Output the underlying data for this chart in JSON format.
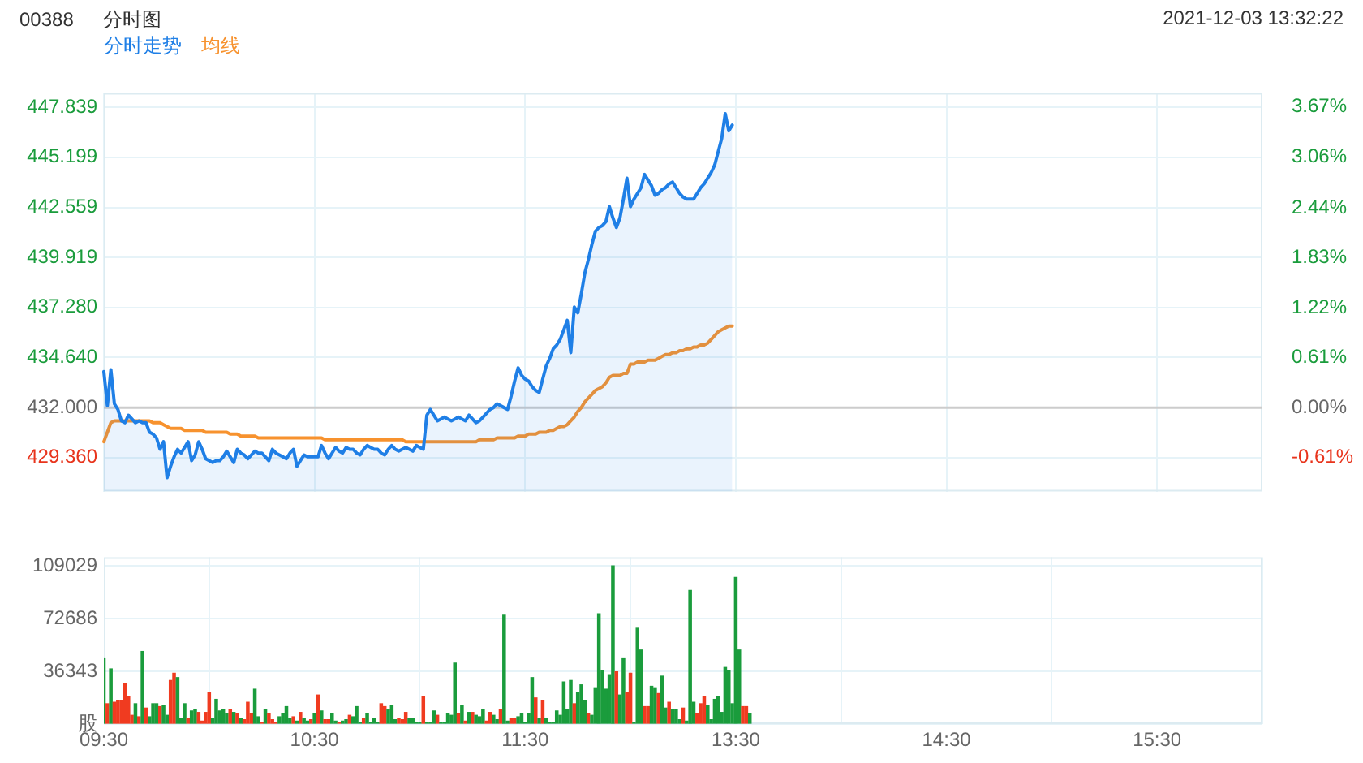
{
  "chart_data": [
    {
      "type": "line",
      "title": "00388",
      "subtitle": "分时图",
      "annotations": [
        "2021-12-03 13:32:22"
      ],
      "legend": "top left",
      "marker": "none",
      "grid": true,
      "tick_labels": "y",
      "categories": [
        null,
        null,
        null,
        null,
        null,
        null,
        null,
        null,
        null,
        null,
        null,
        null,
        null,
        null,
        null,
        null,
        null,
        null,
        null,
        null,
        null,
        null,
        null,
        null,
        null,
        null,
        null,
        null,
        null,
        null,
        null,
        null,
        null,
        null,
        null,
        null,
        null,
        null,
        null,
        null,
        null,
        null,
        null,
        null,
        null,
        null,
        null,
        null,
        null,
        null,
        null,
        null,
        null,
        null,
        null,
        null,
        null,
        null,
        null,
        null,
        null,
        null,
        null,
        null,
        null,
        null,
        null,
        null,
        null,
        null,
        null,
        null,
        null,
        null,
        null,
        null,
        null,
        null,
        null,
        null,
        null,
        null,
        null,
        null,
        null,
        null,
        null,
        null,
        null,
        null,
        null,
        null,
        null,
        null,
        null,
        null,
        null,
        null,
        null,
        null,
        null,
        null,
        null,
        null,
        null,
        null,
        null,
        null,
        null,
        null,
        null,
        null,
        null,
        null,
        null,
        null,
        null,
        null,
        null,
        null,
        null,
        null,
        null,
        null,
        null,
        null,
        null,
        null,
        null,
        null,
        null,
        null,
        null,
        null,
        null,
        null,
        null,
        null,
        null,
        null,
        null,
        null,
        null,
        null,
        null,
        null,
        null,
        null,
        null,
        null,
        null,
        null,
        null,
        null,
        null,
        null,
        null,
        null,
        null,
        null,
        null,
        null,
        null,
        null,
        null,
        null,
        null,
        null,
        null,
        null,
        null,
        null,
        null,
        null,
        null,
        null,
        null,
        null,
        null,
        null,
        null,
        null,
        null,
        null,
        null,
        null,
        null,
        null,
        null,
        null,
        null,
        null,
        null,
        null,
        null,
        null,
        null,
        null,
        null,
        null,
        null,
        null,
        null,
        null,
        null,
        null,
        null,
        null,
        null,
        null,
        null,
        null,
        null,
        null,
        null,
        null,
        null,
        null,
        null,
        null,
        null,
        null,
        null,
        null,
        null,
        null,
        null,
        null,
        null,
        null,
        null,
        null,
        null,
        null,
        null,
        null,
        null,
        null,
        null,
        null,
        null,
        null,
        null,
        null,
        null,
        null,
        null,
        null,
        null,
        null,
        null,
        null,
        null,
        null,
        null,
        null,
        null,
        null,
        null,
        null,
        null,
        null,
        null,
        null,
        null,
        null,
        null,
        null,
        null,
        null,
        null,
        null,
        null,
        null,
        null,
        null,
        null,
        null,
        null,
        null,
        null,
        null,
        null,
        null,
        null,
        null,
        null,
        null,
        null,
        null,
        null,
        null,
        null,
        null,
        null,
        null,
        null,
        null,
        null,
        null,
        null,
        null,
        null,
        null,
        null,
        null,
        null,
        null,
        null,
        null,
        null,
        null,
        null,
        null,
        null,
        null,
        null,
        null,
        null,
        null,
        null,
        null,
        null,
        null,
        null,
        null,
        null,
        null,
        null,
        null,
        null
      ],
      "ylim": [
        427.57,
        448.6
      ],
      "yticks": [
        {
          "value": 429.36,
          "label": "429.360"
        },
        {
          "value": 432,
          "label": "432.000"
        },
        {
          "value": 434.64,
          "label": "434.640"
        },
        {
          "value": 437.28,
          "label": "437.280"
        },
        439.919,
        442.559,
        445.199,
        447.839
      ],
      "y2lim": [
        -1.0255,
        3.843
      ],
      "y2ticks": [
        {
          "value": -0.61,
          "label": "-0.61%"
        },
        {
          "value": 0,
          "label": "0.00%"
        },
        {
          "value": 0.61,
          "label": "0.61%"
        },
        {
          "value": 1.22,
          "label": "1.22%"
        },
        {
          "value": 1.83,
          "label": "1.83%"
        },
        {
          "value": 2.44,
          "label": "2.44%"
        },
        {
          "value": 3.06,
          "label": "3.06%"
        },
        {
          "value": 3.67,
          "label": "3.67%"
        }
      ],
      "ref_lines": [
        {
          "axis": "y",
          "value": 432,
          "color": "#cccccc"
        }
      ],
      "series": [
        {
          "name": "分时走势",
          "type": "area",
          "color": "#1f7fe6",
          "values": [
            433.9,
            432.1,
            434.0,
            432.2,
            431.9,
            431.3,
            431.2,
            431.6,
            431.4,
            431.2,
            431.3,
            431.2,
            431.2,
            430.7,
            430.6,
            430.4,
            429.8,
            430.2,
            428.3,
            428.9,
            429.4,
            429.8,
            429.6,
            429.9,
            430.2,
            429.2,
            429.5,
            430.2,
            429.8,
            429.3,
            429.2,
            429.1,
            429.2,
            429.2,
            429.4,
            429.7,
            429.4,
            429.1,
            429.8,
            429.6,
            429.5,
            429.3,
            429.5,
            429.7,
            429.6,
            429.6,
            429.4,
            429.2,
            429.8,
            429.6,
            429.5,
            429.4,
            429.3,
            429.6,
            429.8,
            428.9,
            429.2,
            429.5,
            429.4,
            429.4,
            429.4,
            429.4,
            430.0,
            429.6,
            429.3,
            429.6,
            429.9,
            429.7,
            429.6,
            429.9,
            429.8,
            429.8,
            429.6,
            429.5,
            429.8,
            430.0,
            429.9,
            429.8,
            429.8,
            429.6,
            429.5,
            429.8,
            430.0,
            429.8,
            429.7,
            429.8,
            429.9,
            429.8,
            429.7,
            430.0,
            429.9,
            429.8,
            431.6,
            431.9,
            431.6,
            431.3,
            431.4,
            431.5,
            431.4,
            431.3,
            431.4,
            431.5,
            431.4,
            431.3,
            431.6,
            431.4,
            431.2,
            431.3,
            431.5,
            431.7,
            431.9,
            432.0,
            432.2,
            432.1,
            432.0,
            431.9,
            432.6,
            433.4,
            434.1,
            433.7,
            433.5,
            433.4,
            433.1,
            432.9,
            432.8,
            433.5,
            434.2,
            434.6,
            435.1,
            435.3,
            435.6,
            436.1,
            436.6,
            434.9,
            437.3,
            437.0,
            438.0,
            439.1,
            439.8,
            440.6,
            441.3,
            441.5,
            441.6,
            441.8,
            442.6,
            442.0,
            441.5,
            442.0,
            443.0,
            444.1,
            442.6,
            443.0,
            443.3,
            443.6,
            444.3,
            444.0,
            443.7,
            443.2,
            443.3,
            443.5,
            443.6,
            443.8,
            443.9,
            443.6,
            443.3,
            443.1,
            443.0,
            443.0,
            443.0,
            443.3,
            443.6,
            443.8,
            444.1,
            444.4,
            444.8,
            445.5,
            446.2,
            447.5,
            446.6,
            446.9,
            null,
            null,
            null,
            null,
            null,
            null,
            null,
            null,
            null,
            null,
            null,
            null,
            null,
            null,
            null,
            null,
            null,
            null,
            null,
            null,
            null,
            null,
            null,
            null,
            null,
            null,
            null,
            null,
            null,
            null,
            null,
            null,
            null,
            null,
            null,
            null,
            null,
            null,
            null,
            null,
            null,
            null,
            null,
            null,
            null,
            null,
            null,
            null,
            null,
            null,
            null,
            null,
            null,
            null,
            null,
            null,
            null,
            null,
            null,
            null,
            null,
            null,
            null,
            null,
            null,
            null,
            null,
            null,
            null,
            null,
            null,
            null,
            null,
            null,
            null,
            null,
            null,
            null,
            null,
            null,
            null,
            null,
            null,
            null,
            null,
            null,
            null,
            null,
            null,
            null,
            null,
            null,
            null,
            null,
            null,
            null,
            null,
            null,
            null,
            null,
            null,
            null,
            null,
            null,
            null,
            null,
            null,
            null,
            null,
            null,
            null,
            null,
            null,
            null,
            null,
            null,
            null,
            null,
            null,
            null,
            null,
            null,
            null,
            null,
            null,
            null,
            null,
            null,
            null,
            null,
            null,
            null,
            null,
            null,
            null,
            null,
            null,
            null,
            null,
            null,
            null,
            null,
            null,
            null,
            null,
            null,
            null,
            null,
            null,
            null,
            null
          ]
        },
        {
          "name": "均线",
          "color": "#f7922e",
          "values": [
            430.2,
            430.7,
            431.2,
            431.3,
            431.3,
            431.3,
            431.3,
            431.3,
            431.3,
            431.3,
            431.3,
            431.3,
            431.3,
            431.3,
            431.2,
            431.2,
            431.2,
            431.1,
            431.0,
            430.9,
            430.9,
            430.9,
            430.9,
            430.8,
            430.8,
            430.8,
            430.8,
            430.8,
            430.8,
            430.7,
            430.7,
            430.7,
            430.7,
            430.7,
            430.7,
            430.7,
            430.6,
            430.6,
            430.6,
            430.5,
            430.5,
            430.5,
            430.5,
            430.5,
            430.4,
            430.4,
            430.4,
            430.4,
            430.4,
            430.4,
            430.4,
            430.4,
            430.4,
            430.4,
            430.4,
            430.4,
            430.4,
            430.4,
            430.4,
            430.4,
            430.4,
            430.4,
            430.4,
            430.3,
            430.3,
            430.3,
            430.3,
            430.3,
            430.3,
            430.3,
            430.3,
            430.3,
            430.3,
            430.3,
            430.3,
            430.3,
            430.3,
            430.3,
            430.3,
            430.3,
            430.3,
            430.3,
            430.3,
            430.3,
            430.3,
            430.3,
            430.2,
            430.2,
            430.2,
            430.2,
            430.2,
            430.2,
            430.2,
            430.2,
            430.2,
            430.2,
            430.2,
            430.2,
            430.2,
            430.2,
            430.2,
            430.2,
            430.2,
            430.2,
            430.2,
            430.2,
            430.2,
            430.3,
            430.3,
            430.3,
            430.3,
            430.3,
            430.4,
            430.4,
            430.4,
            430.4,
            430.4,
            430.4,
            430.5,
            430.5,
            430.5,
            430.6,
            430.6,
            430.6,
            430.7,
            430.7,
            430.7,
            430.8,
            430.8,
            430.9,
            431.0,
            431.0,
            431.1,
            431.3,
            431.5,
            431.8,
            432.0,
            432.3,
            432.5,
            432.7,
            432.9,
            433.0,
            433.1,
            433.3,
            433.6,
            433.7,
            433.7,
            433.7,
            433.8,
            433.8,
            434.3,
            434.3,
            434.4,
            434.4,
            434.4,
            434.5,
            434.5,
            434.5,
            434.6,
            434.7,
            434.8,
            434.8,
            434.9,
            434.9,
            435.0,
            435.0,
            435.1,
            435.1,
            435.2,
            435.2,
            435.3,
            435.3,
            435.4,
            435.6,
            435.8,
            436.0,
            436.1,
            436.2,
            436.3,
            436.3,
            null,
            null,
            null,
            null,
            null,
            null,
            null,
            null,
            null,
            null,
            null,
            null,
            null,
            null,
            null,
            null,
            null,
            null,
            null,
            null,
            null,
            null,
            null,
            null,
            null,
            null,
            null,
            null,
            null,
            null,
            null,
            null,
            null,
            null,
            null,
            null,
            null,
            null,
            null,
            null,
            null,
            null,
            null,
            null,
            null,
            null,
            null,
            null,
            null,
            null,
            null,
            null,
            null,
            null,
            null,
            null,
            null,
            null,
            null,
            null,
            null,
            null,
            null,
            null,
            null,
            null,
            null,
            null,
            null,
            null,
            null,
            null,
            null,
            null,
            null,
            null,
            null,
            null,
            null,
            null,
            null,
            null,
            null,
            null,
            null,
            null,
            null,
            null,
            null,
            null,
            null,
            null,
            null,
            null,
            null,
            null,
            null,
            null,
            null,
            null,
            null,
            null,
            null,
            null,
            null,
            null,
            null,
            null,
            null,
            null,
            null,
            null,
            null,
            null,
            null,
            null,
            null,
            null,
            null,
            null,
            null,
            null,
            null,
            null,
            null,
            null,
            null,
            null,
            null,
            null,
            null,
            null,
            null,
            null,
            null,
            null,
            null,
            null,
            null,
            null,
            null,
            null,
            null,
            null,
            null,
            null,
            null,
            null,
            null,
            null,
            null
          ]
        }
      ]
    },
    {
      "type": "bar",
      "grid": true,
      "categories": [
        "09:30",
        null,
        null,
        null,
        null,
        null,
        null,
        null,
        null,
        null,
        null,
        null,
        null,
        null,
        null,
        null,
        null,
        null,
        null,
        null,
        null,
        null,
        null,
        null,
        null,
        null,
        null,
        null,
        null,
        null,
        null,
        null,
        null,
        null,
        null,
        null,
        null,
        null,
        null,
        null,
        null,
        null,
        null,
        null,
        null,
        null,
        null,
        null,
        null,
        null,
        null,
        null,
        null,
        null,
        null,
        null,
        null,
        null,
        null,
        null,
        "10:30",
        null,
        null,
        null,
        null,
        null,
        null,
        null,
        null,
        null,
        null,
        null,
        null,
        null,
        null,
        null,
        null,
        null,
        null,
        null,
        null,
        null,
        null,
        null,
        null,
        null,
        null,
        null,
        null,
        null,
        null,
        null,
        null,
        null,
        null,
        null,
        null,
        null,
        null,
        null,
        null,
        null,
        null,
        null,
        null,
        null,
        null,
        null,
        null,
        null,
        null,
        null,
        null,
        null,
        null,
        null,
        null,
        null,
        null,
        null,
        "11:30",
        null,
        null,
        null,
        null,
        null,
        null,
        null,
        null,
        null,
        null,
        null,
        null,
        null,
        null,
        null,
        null,
        null,
        null,
        null,
        null,
        null,
        null,
        null,
        null,
        null,
        null,
        null,
        null,
        null,
        null,
        null,
        null,
        null,
        null,
        null,
        null,
        null,
        null,
        null,
        null,
        null,
        null,
        null,
        null,
        null,
        null,
        null,
        null,
        null,
        null,
        null,
        null,
        null,
        null,
        null,
        null,
        null,
        null,
        null,
        "13:30",
        null,
        null,
        null,
        null,
        null,
        null,
        null,
        null,
        null,
        null,
        null,
        null,
        null,
        null,
        null,
        null,
        null,
        null,
        null,
        null,
        null,
        null,
        null,
        null,
        null,
        null,
        null,
        null,
        null,
        null,
        null,
        null,
        null,
        null,
        null,
        null,
        null,
        null,
        null,
        null,
        null,
        null,
        null,
        null,
        null,
        null,
        null,
        null,
        null,
        null,
        null,
        null,
        null,
        null,
        null,
        null,
        null,
        null,
        null,
        "14:30",
        null,
        null,
        null,
        null,
        null,
        null,
        null,
        null,
        null,
        null,
        null,
        null,
        null,
        null,
        null,
        null,
        null,
        null,
        null,
        null,
        null,
        null,
        null,
        null,
        null,
        null,
        null,
        null,
        null,
        null,
        null,
        null,
        null,
        null,
        null,
        null,
        null,
        null,
        null,
        null,
        null,
        null,
        null,
        null,
        null,
        null,
        null,
        null,
        null,
        null,
        null,
        null,
        null,
        null,
        null,
        null,
        null,
        null,
        null,
        "15:30",
        null,
        null,
        null,
        null,
        null,
        null,
        null,
        null,
        null,
        null,
        null,
        null,
        null,
        null,
        null,
        null,
        null,
        null,
        null,
        null,
        null,
        null,
        null,
        null,
        null,
        null,
        null,
        null,
        null,
        null
      ],
      "ylim": [
        0,
        115000
      ],
      "yticks": [
        {
          "value": 0,
          "label": "股"
        },
        36343,
        72686,
        109029
      ],
      "values": [
        45000,
        14000,
        38000,
        15000,
        16000,
        16000,
        28000,
        19000,
        6000,
        14000,
        5000,
        50000,
        11000,
        5000,
        14000,
        14000,
        12000,
        13000,
        6000,
        30000,
        35000,
        32000,
        4000,
        14000,
        4000,
        9000,
        10000,
        8000,
        2000,
        8000,
        22000,
        4000,
        17000,
        9000,
        10000,
        7000,
        10000,
        8000,
        7000,
        4000,
        3000,
        15000,
        7000,
        24000,
        5000,
        1000,
        10000,
        7000,
        3000,
        1000,
        5000,
        7000,
        12000,
        4000,
        5000,
        2000,
        8000,
        4000,
        2000,
        3000,
        7000,
        20000,
        9000,
        3000,
        3000,
        7000,
        2000,
        1000,
        2000,
        3000,
        6000,
        5000,
        12000,
        1000,
        4000,
        7000,
        1000,
        4000,
        1000,
        14000,
        12000,
        10000,
        13000,
        3000,
        4000,
        3000,
        8000,
        4000,
        4000,
        1000,
        1000,
        19000,
        1000,
        1000,
        9000,
        6000,
        1000,
        1000,
        7000,
        6000,
        42000,
        7000,
        13000,
        2000,
        8000,
        8000,
        6000,
        5000,
        10000,
        2000,
        8000,
        6000,
        3000,
        10000,
        75000,
        2000,
        4000,
        4000,
        5000,
        7000,
        1000,
        7000,
        32000,
        18000,
        4000,
        16000,
        4000,
        1000,
        1000,
        9000,
        6000,
        29000,
        10000,
        30000,
        14000,
        22000,
        27000,
        16000,
        7000,
        6000,
        25000,
        76000,
        37000,
        24000,
        34000,
        109000,
        36000,
        20000,
        45000,
        22000,
        35000,
        1000,
        66000,
        51000,
        12000,
        12000,
        26000,
        25000,
        21000,
        33000,
        11000,
        15000,
        10000,
        10000,
        3000,
        11000,
        2000,
        92000,
        15000,
        7000,
        14000,
        19000,
        13000,
        3000,
        17000,
        19000,
        8000,
        39000,
        37000,
        14000,
        101000,
        51000,
        12000,
        12000,
        7000,
        null,
        null,
        null,
        null,
        null,
        null,
        null,
        null,
        null,
        null,
        null,
        null,
        null,
        null,
        null,
        null,
        null,
        null,
        null,
        null,
        null,
        null,
        null,
        null,
        null,
        null,
        null,
        null,
        null,
        null,
        null,
        null,
        null,
        null,
        null,
        null,
        null,
        null,
        null,
        null,
        null,
        null,
        null,
        null,
        null,
        null,
        null,
        null,
        null,
        null,
        null,
        null,
        null,
        null,
        null,
        null,
        null,
        null,
        null,
        null,
        null,
        null,
        null,
        null,
        null,
        null,
        null,
        null,
        null,
        null,
        null,
        null,
        null,
        null,
        null,
        null,
        null,
        null,
        null,
        null,
        null,
        null,
        null,
        null,
        null,
        null,
        null,
        null,
        null,
        null,
        null,
        null,
        null,
        null,
        null,
        null,
        null,
        null,
        null,
        null,
        null,
        null,
        null,
        null,
        null,
        null,
        null,
        null,
        null,
        null,
        null,
        null,
        null,
        null,
        null,
        null,
        null,
        null,
        null,
        null,
        null,
        null,
        null,
        null,
        null,
        null,
        null,
        null,
        null,
        null,
        null,
        null,
        null,
        null,
        null,
        null,
        null,
        null,
        null,
        null,
        null,
        null,
        null,
        null,
        null,
        null
      ],
      "colors": [
        "#1a9c3c",
        "#f03b20",
        "#1a9c3c",
        "#f03b20",
        "#f03b20",
        "#f03b20",
        "#f03b20",
        "#f03b20",
        "#f03b20",
        "#1a9c3c",
        "#f03b20",
        "#1a9c3c",
        "#f03b20",
        "#1a9c3c",
        "#1a9c3c",
        "#1a9c3c",
        "#f03b20",
        "#1a9c3c",
        "#1a9c3c",
        "#f03b20",
        "#f03b20",
        "#1a9c3c",
        "#1a9c3c",
        "#1a9c3c",
        "#f03b20",
        "#1a9c3c",
        "#1a9c3c",
        "#f03b20",
        "#f03b20",
        "#f03b20",
        "#f03b20",
        "#1a9c3c",
        "#1a9c3c",
        "#1a9c3c",
        "#1a9c3c",
        "#1a9c3c",
        "#f03b20",
        "#1a9c3c",
        "#f03b20",
        "#1a9c3c",
        "#f03b20",
        "#f03b20",
        "#f03b20",
        "#1a9c3c",
        "#1a9c3c",
        "#f03b20",
        "#1a9c3c",
        "#f03b20",
        "#f03b20",
        "#f03b20",
        "#1a9c3c",
        "#1a9c3c",
        "#1a9c3c",
        "#1a9c3c",
        "#f03b20",
        "#1a9c3c",
        "#f03b20",
        "#1a9c3c",
        "#1a9c3c",
        "#f03b20",
        "#1a9c3c",
        "#f03b20",
        "#1a9c3c",
        "#f03b20",
        "#f03b20",
        "#1a9c3c",
        "#1a9c3c",
        "#f03b20",
        "#1a9c3c",
        "#1a9c3c",
        "#f03b20",
        "#1a9c3c",
        "#1a9c3c",
        "#1a9c3c",
        "#f03b20",
        "#1a9c3c",
        "#1a9c3c",
        "#1a9c3c",
        "#1a9c3c",
        "#f03b20",
        "#f03b20",
        "#1a9c3c",
        "#1a9c3c",
        "#1a9c3c",
        "#f03b20",
        "#f03b20",
        "#f03b20",
        "#1a9c3c",
        "#1a9c3c",
        "#1a9c3c",
        "#1a9c3c",
        "#f03b20",
        "#1a9c3c",
        "#1a9c3c",
        "#1a9c3c",
        "#f03b20",
        "#1a9c3c",
        "#1a9c3c",
        "#1a9c3c",
        "#1a9c3c",
        "#1a9c3c",
        "#f03b20",
        "#1a9c3c",
        "#f03b20",
        "#1a9c3c",
        "#f03b20",
        "#1a9c3c",
        "#1a9c3c",
        "#1a9c3c",
        "#f03b20",
        "#f03b20",
        "#1a9c3c",
        "#1a9c3c",
        "#f03b20",
        "#1a9c3c",
        "#1a9c3c",
        "#f03b20",
        "#f03b20",
        "#1a9c3c",
        "#1a9c3c",
        "#1a9c3c",
        "#1a9c3c",
        "#1a9c3c",
        "#f03b20",
        "#1a9c3c",
        "#f03b20",
        "#1a9c3c",
        "#1a9c3c",
        "#1a9c3c",
        "#1a9c3c",
        "#1a9c3c",
        "#1a9c3c",
        "#1a9c3c",
        "#1a9c3c",
        "#f03b20",
        "#1a9c3c",
        "#1a9c3c",
        "#1a9c3c",
        "#f03b20",
        "#1a9c3c",
        "#1a9c3c",
        "#1a9c3c",
        "#1a9c3c",
        "#1a9c3c",
        "#1a9c3c",
        "#1a9c3c",
        "#f03b20",
        "#1a9c3c",
        "#1a9c3c",
        "#f03b20",
        "#f03b20",
        "#1a9c3c",
        "#1a9c3c",
        "#1a9c3c",
        "#f03b20",
        "#f03b20",
        "#1a9c3c",
        "#1a9c3c",
        "#f03b20",
        "#1a9c3c",
        "#1a9c3c",
        "#f03b20",
        "#1a9c3c",
        "#1a9c3c",
        "#1a9c3c",
        "#f03b20",
        "#1a9c3c",
        "#1a9c3c",
        "#1a9c3c",
        "#f03b20",
        "#f03b20",
        "#f03b20",
        "#1a9c3c",
        "#1a9c3c",
        "#1a9c3c",
        "#1a9c3c",
        "#1a9c3c",
        "#1a9c3c",
        "#1a9c3c",
        "#1a9c3c",
        "#1a9c3c",
        "#1a9c3c",
        "#f03b20",
        "#f03b20",
        "#1a9c3c",
        null,
        null,
        null,
        null,
        null,
        null,
        null,
        null,
        null,
        null,
        null,
        null,
        null,
        null,
        null,
        null,
        null,
        null,
        null,
        null,
        null,
        null,
        null,
        null,
        null,
        null,
        null,
        null,
        null,
        null,
        null,
        null,
        null,
        null,
        null,
        null,
        null,
        null,
        null,
        null,
        null,
        null,
        null,
        null,
        null,
        null,
        null,
        null,
        null,
        null,
        null,
        null,
        null,
        null,
        null,
        null,
        null,
        null,
        null,
        null,
        null,
        null,
        null,
        null,
        null,
        null,
        null,
        null,
        null,
        null,
        null,
        null,
        null,
        null,
        null,
        null,
        null,
        null,
        null,
        null,
        null,
        null,
        null,
        null,
        null,
        null,
        null,
        null,
        null,
        null,
        null,
        null,
        null,
        null,
        null,
        null,
        null,
        null,
        null,
        null,
        null,
        null,
        null,
        null,
        null,
        null,
        null,
        null,
        null,
        null,
        null,
        null,
        null,
        null,
        null,
        null,
        null,
        null,
        null,
        null,
        null,
        null,
        null,
        null,
        null,
        null,
        null,
        null,
        null,
        null,
        null,
        null,
        null,
        null,
        null,
        null,
        null,
        null,
        null,
        null,
        null,
        null,
        null,
        null,
        null,
        null
      ]
    }
  ]
}
